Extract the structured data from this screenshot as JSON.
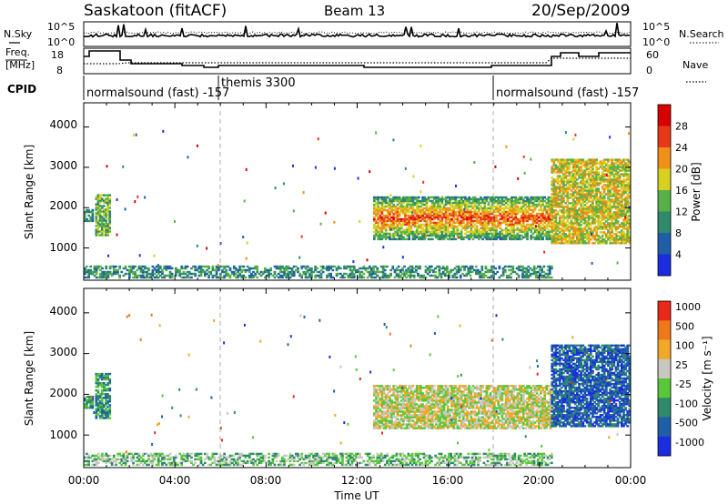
{
  "header": {
    "site": "Saskatoon (fitACF)",
    "beam": "Beam 13",
    "date": "20/Sep/2009"
  },
  "noise_panel": {
    "left_label": "N.Sky",
    "right_label": "N.Search",
    "ticks": [
      "10^5",
      "10^0"
    ]
  },
  "freq_panel": {
    "left_label_1": "Freq.",
    "left_label_2": "[MHz]",
    "left_ticks": [
      "18",
      "8"
    ],
    "right_label": "Nave",
    "right_ticks": [
      "60",
      "0"
    ]
  },
  "cpid": {
    "label": "CPID",
    "segments": [
      "normalsound (fast) -157",
      "themis 3300",
      "normalsound (fast) -157"
    ]
  },
  "x_axis": {
    "label": "Time UT",
    "ticks": [
      "00:00",
      "04:00",
      "08:00",
      "12:00",
      "16:00",
      "20:00",
      "00:00"
    ]
  },
  "chart_data": [
    {
      "type": "heatmap",
      "title": "",
      "xlabel": "",
      "ylabel": "Slant Range [km]",
      "y_ticks": [
        "1000",
        "2000",
        "3000",
        "4000"
      ],
      "ylim": [
        200,
        4600
      ],
      "xlim_hours": [
        0,
        24
      ],
      "colorbar_label": "Power [dB]",
      "colorbar_ticks": [
        "4",
        "8",
        "12",
        "16",
        "20",
        "24",
        "28"
      ],
      "colors": [
        "#1a2ee0",
        "#1f5fa8",
        "#2e8a6a",
        "#58b148",
        "#d8d020",
        "#f09018",
        "#e83818",
        "#d80000"
      ],
      "regions": [
        {
          "t": [
            0.0,
            0.4
          ],
          "r": [
            1650,
            1950
          ],
          "level": 2
        },
        {
          "t": [
            0.5,
            1.1
          ],
          "r": [
            1300,
            2300
          ],
          "level": 3
        },
        {
          "t": [
            0.0,
            20.5
          ],
          "r": [
            250,
            550
          ],
          "level": 2
        },
        {
          "t": [
            12.7,
            20.5
          ],
          "r": [
            1200,
            2250
          ],
          "level": 5
        },
        {
          "t": [
            20.5,
            24.0
          ],
          "r": [
            1100,
            3200
          ],
          "level": 4
        }
      ]
    },
    {
      "type": "heatmap",
      "title": "",
      "xlabel": "Time UT",
      "ylabel": "Slant Range [km]",
      "y_ticks": [
        "1000",
        "2000",
        "3000",
        "4000"
      ],
      "ylim": [
        200,
        4600
      ],
      "xlim_hours": [
        0,
        24
      ],
      "colorbar_label": "Velocity [m s⁻¹]",
      "colorbar_ticks": [
        "1000",
        "500",
        "100",
        "25",
        "-25",
        "-100",
        "-500",
        "-1000"
      ],
      "colors": [
        "#1a2ee0",
        "#1f5fa8",
        "#2e8a6a",
        "#58c838",
        "#c8c8c0",
        "#f0a828",
        "#f07818",
        "#e82818"
      ],
      "regions": [
        {
          "t": [
            0.0,
            0.4
          ],
          "r": [
            1650,
            1950
          ],
          "level": 2
        },
        {
          "t": [
            0.5,
            1.1
          ],
          "r": [
            1400,
            2500
          ],
          "level": 2
        },
        {
          "t": [
            0.0,
            20.5
          ],
          "r": [
            250,
            550
          ],
          "level": 3
        },
        {
          "t": [
            12.7,
            20.5
          ],
          "r": [
            1150,
            2200
          ],
          "level": 4
        },
        {
          "t": [
            20.5,
            24.0
          ],
          "r": [
            1200,
            3200
          ],
          "level": 1
        }
      ]
    }
  ]
}
